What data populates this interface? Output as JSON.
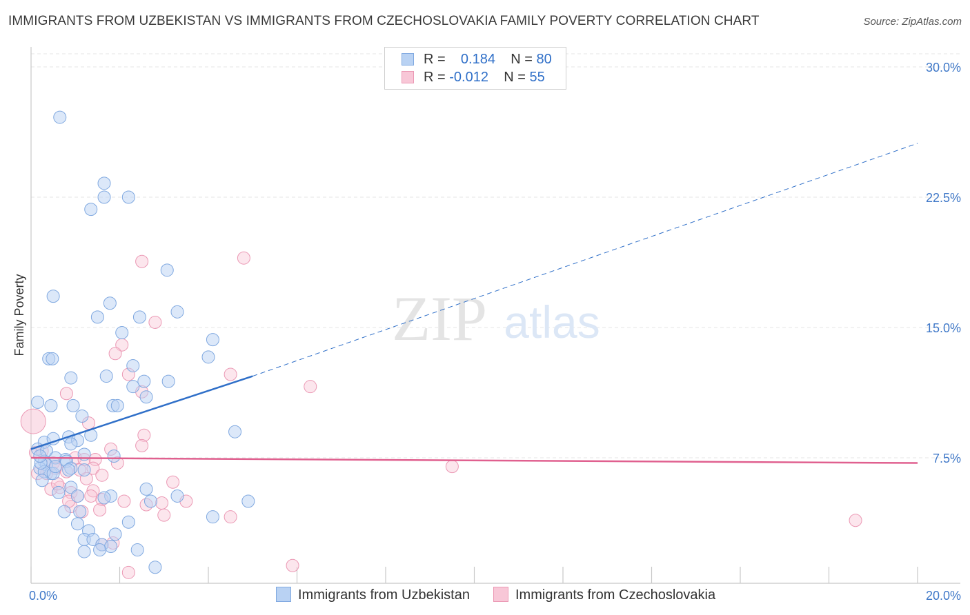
{
  "header": {
    "title": "IMMIGRANTS FROM UZBEKISTAN VS IMMIGRANTS FROM CZECHOSLOVAKIA FAMILY POVERTY CORRELATION CHART",
    "source": "Source: ZipAtlas.com"
  },
  "watermark": {
    "zip": "ZIP",
    "atlas": "atlas"
  },
  "legend": {
    "rows": [
      {
        "r_label": "R =",
        "r_value": "0.184",
        "n_label": "N =",
        "n_value": "80"
      },
      {
        "r_label": "R =",
        "r_value": "-0.012",
        "n_label": "N =",
        "n_value": "55"
      }
    ]
  },
  "bottom_legend": {
    "items": [
      {
        "label": "Immigrants from Uzbekistan"
      },
      {
        "label": "Immigrants from Czechoslovakia"
      }
    ]
  },
  "colors": {
    "series_a_fill": "#b9d2f3",
    "series_a_stroke": "#7fa8e0",
    "series_a_line": "#2f6fc8",
    "series_b_fill": "#f8c7d7",
    "series_b_stroke": "#eb98b4",
    "series_b_line": "#e0608f",
    "tick_label": "#3f78c8",
    "grid": "#e6e6e6"
  },
  "chart_data": {
    "type": "scatter",
    "title": "IMMIGRANTS FROM UZBEKISTAN VS IMMIGRANTS FROM CZECHOSLOVAKIA FAMILY POVERTY CORRELATION CHART",
    "xlabel": "",
    "ylabel": "Family Poverty",
    "xlim": [
      0,
      20
    ],
    "ylim": [
      0,
      30
    ],
    "x_tick_labels": [
      "0.0%",
      "20.0%"
    ],
    "y_ticks": [
      7.5,
      15.0,
      22.5,
      30.0
    ],
    "y_tick_labels": [
      "7.5%",
      "15.0%",
      "22.5%",
      "30.0%"
    ],
    "grid": true,
    "legend_position": "top-center",
    "series": [
      {
        "name": "Immigrants from Uzbekistan",
        "R": 0.184,
        "N": 80,
        "trend": {
          "x0": 0,
          "y0": 8.0,
          "x1": 5.0,
          "y1": 12.2,
          "dashed_to_x": 20,
          "dashed_to_y": 25.6
        },
        "points": [
          [
            0.65,
            27.1
          ],
          [
            1.65,
            23.3
          ],
          [
            2.2,
            22.5
          ],
          [
            1.65,
            22.5
          ],
          [
            1.35,
            21.8
          ],
          [
            3.07,
            18.3
          ],
          [
            1.78,
            16.4
          ],
          [
            0.5,
            16.8
          ],
          [
            3.3,
            15.9
          ],
          [
            1.5,
            15.6
          ],
          [
            2.45,
            15.6
          ],
          [
            2.05,
            14.7
          ],
          [
            4.1,
            14.3
          ],
          [
            0.4,
            13.2
          ],
          [
            0.48,
            13.2
          ],
          [
            4.0,
            13.3
          ],
          [
            2.3,
            12.8
          ],
          [
            1.7,
            12.2
          ],
          [
            0.9,
            12.1
          ],
          [
            3.1,
            11.9
          ],
          [
            2.55,
            11.9
          ],
          [
            2.3,
            11.6
          ],
          [
            2.6,
            11.0
          ],
          [
            0.15,
            10.7
          ],
          [
            0.45,
            10.5
          ],
          [
            0.95,
            10.5
          ],
          [
            1.85,
            10.5
          ],
          [
            1.95,
            10.5
          ],
          [
            1.15,
            9.9
          ],
          [
            4.6,
            9.0
          ],
          [
            0.3,
            8.4
          ],
          [
            0.5,
            8.6
          ],
          [
            1.35,
            8.8
          ],
          [
            0.85,
            8.7
          ],
          [
            1.05,
            8.5
          ],
          [
            0.9,
            8.3
          ],
          [
            0.15,
            8.0
          ],
          [
            0.35,
            7.9
          ],
          [
            1.2,
            7.7
          ],
          [
            0.55,
            7.5
          ],
          [
            0.78,
            7.4
          ],
          [
            0.3,
            7.3
          ],
          [
            0.35,
            7.1
          ],
          [
            1.87,
            7.6
          ],
          [
            0.8,
            7.3
          ],
          [
            0.9,
            6.9
          ],
          [
            0.2,
            6.9
          ],
          [
            0.45,
            6.6
          ],
          [
            1.2,
            6.8
          ],
          [
            0.3,
            6.7
          ],
          [
            0.5,
            6.6
          ],
          [
            0.85,
            6.8
          ],
          [
            0.25,
            6.2
          ],
          [
            0.9,
            5.8
          ],
          [
            2.6,
            5.7
          ],
          [
            0.62,
            5.5
          ],
          [
            1.05,
            5.3
          ],
          [
            1.8,
            5.3
          ],
          [
            1.65,
            5.2
          ],
          [
            2.7,
            5.0
          ],
          [
            3.3,
            5.3
          ],
          [
            0.75,
            4.4
          ],
          [
            1.1,
            4.4
          ],
          [
            2.2,
            3.8
          ],
          [
            1.05,
            3.7
          ],
          [
            1.3,
            3.3
          ],
          [
            4.1,
            4.1
          ],
          [
            4.9,
            5.0
          ],
          [
            1.2,
            2.8
          ],
          [
            1.4,
            2.8
          ],
          [
            1.9,
            3.1
          ],
          [
            1.6,
            2.5
          ],
          [
            1.8,
            2.4
          ],
          [
            1.55,
            2.2
          ],
          [
            1.2,
            2.1
          ],
          [
            2.4,
            2.2
          ],
          [
            2.8,
            1.2
          ],
          [
            0.22,
            7.2
          ],
          [
            0.55,
            7.0
          ],
          [
            0.2,
            7.6
          ]
        ]
      },
      {
        "name": "Immigrants from Czechoslovakia",
        "R": -0.012,
        "N": 55,
        "trend": {
          "x0": 0,
          "y0": 7.5,
          "x1": 20,
          "y1": 7.2
        },
        "points": [
          [
            0.05,
            9.6
          ],
          [
            4.8,
            19.0
          ],
          [
            2.5,
            18.8
          ],
          [
            2.8,
            15.3
          ],
          [
            2.05,
            14.0
          ],
          [
            1.9,
            13.5
          ],
          [
            4.5,
            12.3
          ],
          [
            2.2,
            12.3
          ],
          [
            6.3,
            11.6
          ],
          [
            0.8,
            11.2
          ],
          [
            2.5,
            11.3
          ],
          [
            1.3,
            9.5
          ],
          [
            2.55,
            8.8
          ],
          [
            2.5,
            8.2
          ],
          [
            1.8,
            8.0
          ],
          [
            0.1,
            7.8
          ],
          [
            0.25,
            7.9
          ],
          [
            1.0,
            7.5
          ],
          [
            1.2,
            7.4
          ],
          [
            1.95,
            7.2
          ],
          [
            1.45,
            7.4
          ],
          [
            0.5,
            7.2
          ],
          [
            9.5,
            7.0
          ],
          [
            0.55,
            6.9
          ],
          [
            1.1,
            6.8
          ],
          [
            0.8,
            6.7
          ],
          [
            1.4,
            6.9
          ],
          [
            1.6,
            6.5
          ],
          [
            0.35,
            6.6
          ],
          [
            3.2,
            6.1
          ],
          [
            0.65,
            5.8
          ],
          [
            0.45,
            5.7
          ],
          [
            0.9,
            5.5
          ],
          [
            1.4,
            5.6
          ],
          [
            1.05,
            5.3
          ],
          [
            1.35,
            5.3
          ],
          [
            1.6,
            5.1
          ],
          [
            2.1,
            5.0
          ],
          [
            3.5,
            5.0
          ],
          [
            2.6,
            4.8
          ],
          [
            2.95,
            4.9
          ],
          [
            0.9,
            4.7
          ],
          [
            1.15,
            4.4
          ],
          [
            1.55,
            4.5
          ],
          [
            3.0,
            4.2
          ],
          [
            4.5,
            4.1
          ],
          [
            1.85,
            2.6
          ],
          [
            2.2,
            0.9
          ],
          [
            5.9,
            1.3
          ],
          [
            18.6,
            3.9
          ],
          [
            0.15,
            6.6
          ],
          [
            0.85,
            5.0
          ],
          [
            1.6,
            2.5
          ],
          [
            0.6,
            6.0
          ],
          [
            1.25,
            6.3
          ]
        ]
      }
    ]
  }
}
